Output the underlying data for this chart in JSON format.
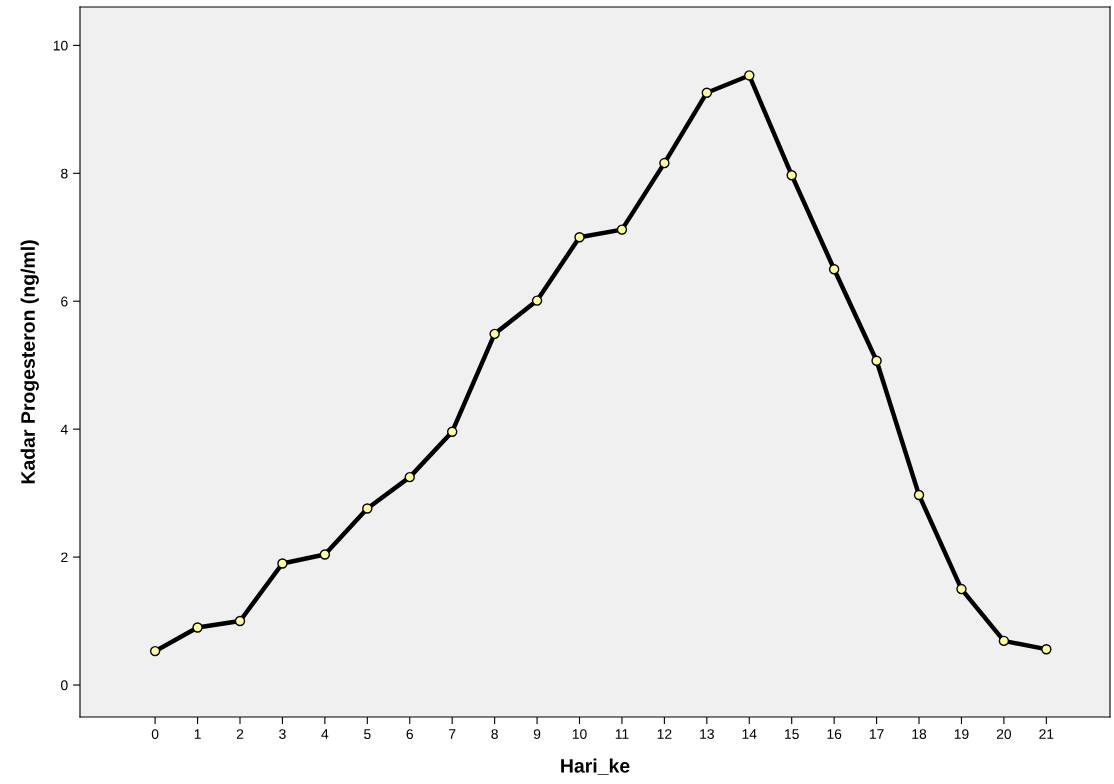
{
  "chart_data": {
    "type": "line",
    "xlabel": "Hari_ke",
    "ylabel": "Kadar Progesteron (ng/ml)",
    "categories": [
      "0",
      "1",
      "2",
      "3",
      "4",
      "5",
      "6",
      "7",
      "8",
      "9",
      "10",
      "11",
      "12",
      "13",
      "14",
      "15",
      "16",
      "17",
      "18",
      "19",
      "20",
      "21"
    ],
    "series": [
      {
        "color": "#000000",
        "values": [
          0.53,
          0.9,
          1.0,
          1.9,
          2.04,
          2.76,
          3.25,
          3.96,
          5.49,
          6.01,
          7.0,
          7.12,
          8.16,
          9.26,
          9.53,
          7.97,
          6.5,
          5.07,
          2.97,
          1.5,
          0.69,
          0.56
        ]
      }
    ],
    "ylim": [
      -0.5,
      10.6
    ],
    "yticks": [
      0,
      2,
      4,
      6,
      8,
      10
    ],
    "grid": false,
    "legend": false,
    "marker": "circle",
    "line_style": "solid"
  }
}
